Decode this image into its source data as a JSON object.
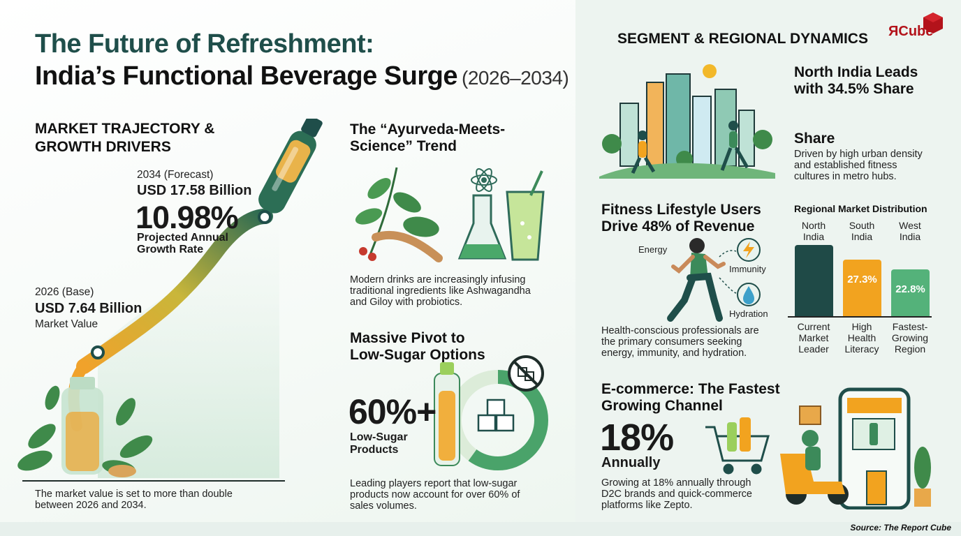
{
  "header": {
    "title_line1": "The Future of Refreshment:",
    "title_line2": "India’s Functional Beverage Surge",
    "title_years": "(2026–2034)"
  },
  "market": {
    "heading_line1": "MARKET TRAJECTORY &",
    "heading_line2": "GROWTH DRIVERS",
    "forecast_label": "2034 (Forecast)",
    "forecast_value": "USD 17.58 Billion",
    "cagr": "10.98%",
    "cagr_label_line1": "Projected Annual",
    "cagr_label_line2": "Growth Rate",
    "base_label": "2026 (Base)",
    "base_value": "USD 7.64 Billion",
    "base_caption": "Market Value",
    "footnote_line1": "The market value is set to more than double",
    "footnote_line2": "between 2026 and 2034."
  },
  "ayurveda": {
    "heading_line1": "The “Ayurveda-Meets-",
    "heading_line2": "Science” Trend",
    "body_line1": "Modern drinks are increasingly infusing",
    "body_line2": "traditional ingredients like Ashwagandha",
    "body_line3": "and Giloy with probiotics."
  },
  "low_sugar": {
    "heading_line1": "Massive Pivot to",
    "heading_line2": "Low-Sugar Options",
    "stat": "60%+",
    "stat_label_line1": "Low-Sugar",
    "stat_label_line2": "Products",
    "share_fraction": 0.6,
    "body_line1": "Leading players report that low-sugar",
    "body_line2": "products now account for over 60% of",
    "body_line3": "sales volumes."
  },
  "segment": {
    "heading": "SEGMENT & REGIONAL DYNAMICS",
    "north_heading_line1": "North India Leads",
    "north_heading_line2": "with 34.5% Share",
    "share_subheading": "Share",
    "share_body_line1": "Driven by high urban density",
    "share_body_line2": "and established fitness",
    "share_body_line3": "cultures in metro hubs."
  },
  "fitness": {
    "heading_line1": "Fitness Lifestyle Users",
    "heading_line2": "Drive 48% of Revenue",
    "tag_energy": "Energy",
    "tag_immunity": "Immunity",
    "tag_hydration": "Hydration",
    "body_line1": "Health-conscious professionals are",
    "body_line2": "the primary consumers seeking",
    "body_line3": "energy, immunity, and hydration."
  },
  "regional": {
    "heading": "Regional Market Distribution",
    "bars": [
      {
        "region_line1": "North",
        "region_line2": "India",
        "value_label": "",
        "value": 34.5,
        "caption_line1": "Current",
        "caption_line2": "Market",
        "caption_line3": "Leader",
        "color": "#1f4a47"
      },
      {
        "region_line1": "South",
        "region_line2": "India",
        "value_label": "27.3%",
        "value": 27.3,
        "caption_line1": "High",
        "caption_line2": "Health",
        "caption_line3": "Literacy",
        "color": "#f2a31f"
      },
      {
        "region_line1": "West",
        "region_line2": "India",
        "value_label": "22.8%",
        "value": 22.8,
        "caption_line1": "Fastest-",
        "caption_line2": "Growing",
        "caption_line3": "Region",
        "color": "#54b27a"
      }
    ]
  },
  "ecommerce": {
    "heading_line1": "E-commerce: The Fastest",
    "heading_line2": "Growing Channel",
    "stat": "18%",
    "stat_label": "Annually",
    "body_line1": "Growing at 18% annually through",
    "body_line2": "D2C brands and quick-commerce",
    "body_line3": "platforms like Zepto."
  },
  "brand": {
    "logo_text": "ЯCube"
  },
  "footer": {
    "source": "Source: The Report Cube"
  },
  "colors": {
    "teal_dark": "#1f4e4a",
    "green": "#3c8a5a",
    "orange": "#f2a31f",
    "lime": "#9bcf5c"
  }
}
